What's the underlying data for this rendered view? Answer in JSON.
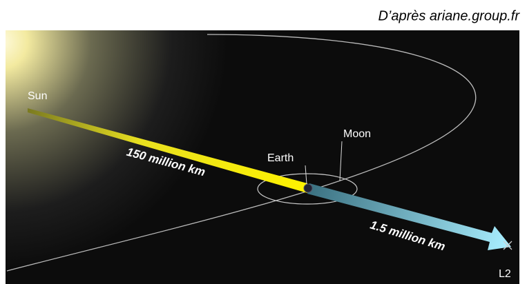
{
  "caption": "D’après ariane.group.fr",
  "labels": {
    "sun": "Sun",
    "sun_distance": "150 million km",
    "earth": "Earth",
    "moon": "Moon",
    "l2_distance": "1.5 million km",
    "l2": "L2"
  }
}
